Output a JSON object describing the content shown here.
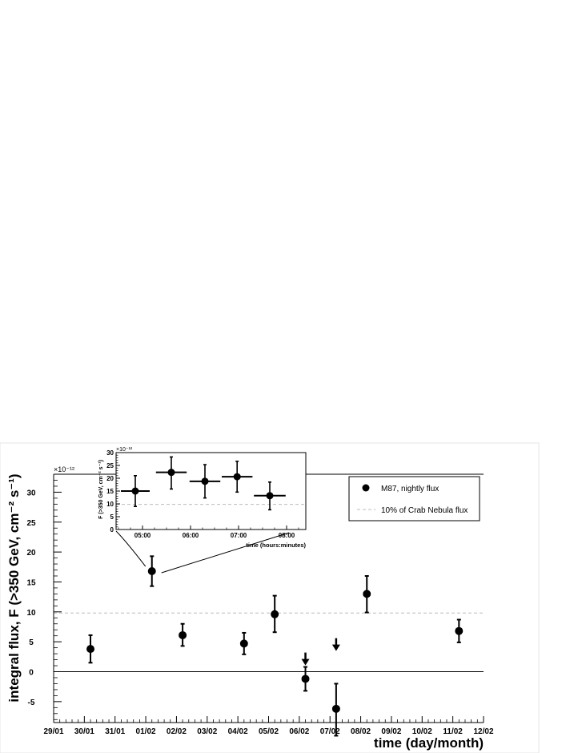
{
  "chart_data": [
    {
      "type": "scatter",
      "title": "",
      "xlabel": "time (day/month)",
      "ylabel": "integral flux, F (>350 GeV, cm⁻² s⁻¹)",
      "y_multiplier": "×10⁻¹²",
      "xlim": [
        0,
        14
      ],
      "ylim": [
        -8.5,
        33
      ],
      "x_tick_labels": [
        "29/01",
        "30/01",
        "31/01",
        "01/02",
        "02/02",
        "03/02",
        "04/02",
        "05/02",
        "06/02",
        "07/02",
        "08/02",
        "09/02",
        "10/02",
        "11/02",
        "12/02"
      ],
      "y_ticks": [
        -5,
        0,
        5,
        10,
        15,
        20,
        25,
        30
      ],
      "y_tick_labels": [
        "-5",
        "0",
        "5",
        "10",
        "15",
        "20",
        "25",
        "30"
      ],
      "series": [
        {
          "name": "M87, nightly flux",
          "color": "#000000",
          "points": [
            {
              "x": 1.2,
              "y": 3.8,
              "err_lo": 2.3,
              "err_hi": 2.3
            },
            {
              "x": 3.2,
              "y": 16.8,
              "err_lo": 2.5,
              "err_hi": 2.5
            },
            {
              "x": 4.2,
              "y": 6.1,
              "err_lo": 1.8,
              "err_hi": 1.9
            },
            {
              "x": 6.2,
              "y": 4.7,
              "err_lo": 1.8,
              "err_hi": 1.8
            },
            {
              "x": 7.2,
              "y": 9.6,
              "err_lo": 3.0,
              "err_hi": 3.1
            },
            {
              "x": 8.2,
              "y": -1.2,
              "err_lo": 2.0,
              "err_hi": 2.0
            },
            {
              "x": 9.2,
              "y": -6.2,
              "err_lo": 4.5,
              "err_hi": 4.2
            },
            {
              "x": 10.2,
              "y": 13.0,
              "err_lo": 3.1,
              "err_hi": 3.0
            },
            {
              "x": 13.2,
              "y": 6.8,
              "err_lo": 1.9,
              "err_hi": 1.9
            }
          ]
        }
      ],
      "upper_limits": [
        {
          "x": 8.2,
          "y": 3.2
        },
        {
          "x": 9.2,
          "y": 5.6
        }
      ],
      "reference_lines": [
        {
          "name": "10% of Crab Nebula flux",
          "y": 9.8,
          "style": "dashed",
          "color": "#bbbbbb"
        },
        {
          "name": "",
          "y": 0,
          "style": "solid",
          "color": "#000000"
        }
      ],
      "legend": {
        "placement": "top-right",
        "entries": [
          "M87, nightly flux",
          "10% of Crab Nebula flux"
        ]
      },
      "grid": false
    },
    {
      "type": "scatter",
      "title": "",
      "placement": "inset top-left",
      "xlabel": "time (hours:minutes)",
      "ylabel": "F (>350 GeV, cm⁻² s⁻¹)",
      "y_multiplier": "×10⁻¹²",
      "x_tick_labels": [
        "05:00",
        "06:00",
        "07:00",
        "08:00"
      ],
      "x_tick_values": [
        5,
        6,
        7,
        8
      ],
      "xlim": [
        4.45,
        8.4
      ],
      "ylim": [
        0,
        30
      ],
      "y_ticks": [
        0,
        5,
        10,
        15,
        20,
        25,
        30
      ],
      "y_tick_labels": [
        "0",
        "5",
        "10",
        "15",
        "20",
        "25",
        "30"
      ],
      "series": [
        {
          "name": "",
          "color": "#000000",
          "points": [
            {
              "x": 4.85,
              "y": 15.0,
              "xerr": 0.3,
              "err_lo": 6.0,
              "err_hi": 6.0
            },
            {
              "x": 5.6,
              "y": 22.3,
              "xerr": 0.32,
              "err_lo": 6.5,
              "err_hi": 6.0
            },
            {
              "x": 6.3,
              "y": 18.8,
              "xerr": 0.32,
              "err_lo": 6.5,
              "err_hi": 6.5
            },
            {
              "x": 6.97,
              "y": 20.6,
              "xerr": 0.32,
              "err_lo": 6.0,
              "err_hi": 6.0
            },
            {
              "x": 7.65,
              "y": 13.2,
              "xerr": 0.33,
              "err_lo": 5.5,
              "err_hi": 5.3
            }
          ]
        }
      ],
      "reference_lines": [
        {
          "name": "10% of Crab Nebula flux",
          "y": 9.8,
          "style": "dashed",
          "color": "#bbbbbb"
        }
      ],
      "grid": false
    }
  ]
}
